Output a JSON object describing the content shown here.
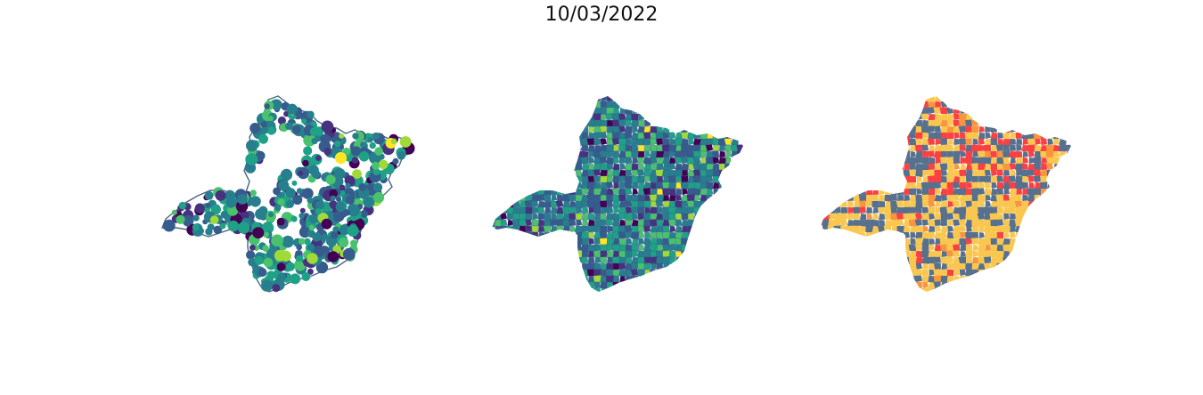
{
  "title": "10/03/2022",
  "maps": [
    {
      "id": "points",
      "kind": "proportional-points",
      "colormap": "viridis",
      "outline_color": "#4a6585"
    },
    {
      "id": "choro-viridis",
      "kind": "choropleth",
      "colormap": "viridis",
      "edge_color": "#3b528b"
    },
    {
      "id": "choro-categories",
      "kind": "choropleth",
      "palette": [
        "#56708e",
        "#f9c74f",
        "#f8963d",
        "#f94144"
      ],
      "palette_names": [
        "slate-blue",
        "yellow",
        "orange",
        "red"
      ]
    }
  ]
}
